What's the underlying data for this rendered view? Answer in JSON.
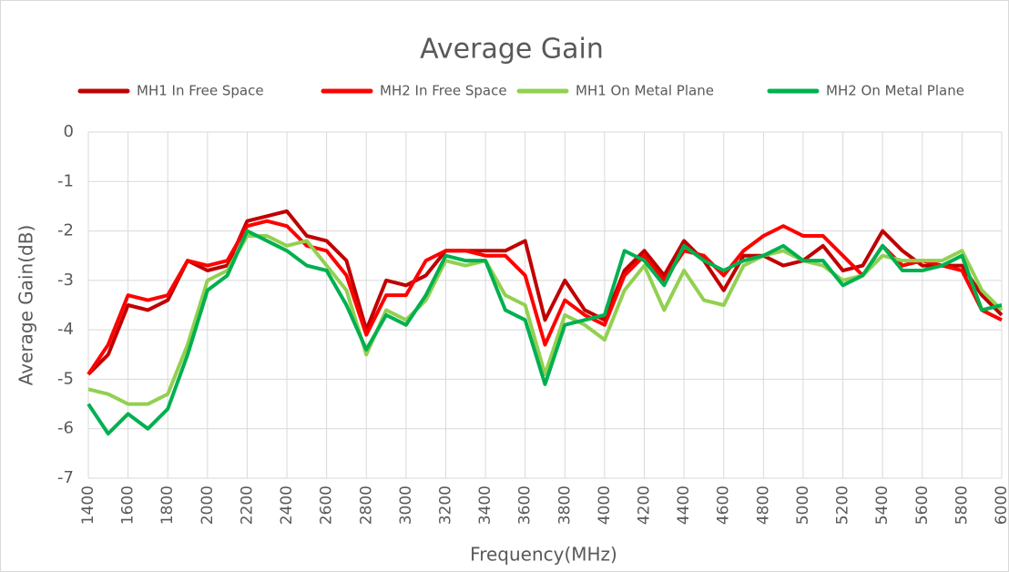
{
  "chart_data": {
    "type": "line",
    "title": "Average Gain",
    "xlabel": "Frequency(MHz)",
    "ylabel": "Average Gain(dB)",
    "x": [
      1400,
      1500,
      1600,
      1700,
      1800,
      1900,
      2000,
      2100,
      2200,
      2300,
      2400,
      2500,
      2600,
      2700,
      2800,
      2900,
      3000,
      3100,
      3200,
      3300,
      3400,
      3500,
      3600,
      3700,
      3800,
      3900,
      4000,
      4100,
      4200,
      4300,
      4400,
      4500,
      4600,
      4700,
      4800,
      4900,
      5000,
      5100,
      5200,
      5300,
      5400,
      5500,
      5600,
      5700,
      5800,
      5900,
      6000
    ],
    "series": [
      {
        "name": "MH1 In Free Space",
        "color": "#c00000",
        "values": [
          -4.9,
          -4.5,
          -3.5,
          -3.6,
          -3.4,
          -2.6,
          -2.8,
          -2.7,
          -1.8,
          -1.7,
          -1.6,
          -2.1,
          -2.2,
          -2.6,
          -4.0,
          -3.0,
          -3.1,
          -2.9,
          -2.4,
          -2.4,
          -2.4,
          -2.4,
          -2.2,
          -3.8,
          -3.0,
          -3.6,
          -3.8,
          -2.8,
          -2.4,
          -2.9,
          -2.2,
          -2.6,
          -3.2,
          -2.5,
          -2.5,
          -2.7,
          -2.6,
          -2.3,
          -2.8,
          -2.7,
          -2.0,
          -2.4,
          -2.7,
          -2.7,
          -2.7,
          -3.3,
          -3.7
        ]
      },
      {
        "name": "MH2 In Free Space",
        "color": "#ff0000",
        "values": [
          -4.9,
          -4.3,
          -3.3,
          -3.4,
          -3.3,
          -2.6,
          -2.7,
          -2.6,
          -1.9,
          -1.8,
          -1.9,
          -2.3,
          -2.4,
          -2.9,
          -4.1,
          -3.3,
          -3.3,
          -2.6,
          -2.4,
          -2.4,
          -2.5,
          -2.5,
          -2.9,
          -4.3,
          -3.4,
          -3.7,
          -3.9,
          -2.9,
          -2.5,
          -3.0,
          -2.4,
          -2.5,
          -2.9,
          -2.4,
          -2.1,
          -1.9,
          -2.1,
          -2.1,
          -2.5,
          -2.9,
          -2.3,
          -2.7,
          -2.6,
          -2.7,
          -2.8,
          -3.6,
          -3.8
        ]
      },
      {
        "name": "MH1 On Metal Plane",
        "color": "#92d050",
        "values": [
          -5.2,
          -5.3,
          -5.5,
          -5.5,
          -5.3,
          -4.3,
          -3.0,
          -2.8,
          -2.1,
          -2.1,
          -2.3,
          -2.2,
          -2.7,
          -3.2,
          -4.5,
          -3.6,
          -3.8,
          -3.4,
          -2.6,
          -2.7,
          -2.6,
          -3.3,
          -3.5,
          -4.9,
          -3.7,
          -3.9,
          -4.2,
          -3.2,
          -2.7,
          -3.6,
          -2.8,
          -3.4,
          -3.5,
          -2.7,
          -2.5,
          -2.4,
          -2.6,
          -2.7,
          -3.0,
          -2.9,
          -2.5,
          -2.6,
          -2.6,
          -2.6,
          -2.4,
          -3.2,
          -3.6
        ]
      },
      {
        "name": "MH2 On Metal Plane",
        "color": "#00b050",
        "values": [
          -5.5,
          -6.1,
          -5.7,
          -6.0,
          -5.6,
          -4.5,
          -3.2,
          -2.9,
          -2.0,
          -2.2,
          -2.4,
          -2.7,
          -2.8,
          -3.5,
          -4.4,
          -3.7,
          -3.9,
          -3.3,
          -2.5,
          -2.6,
          -2.6,
          -3.6,
          -3.8,
          -5.1,
          -3.9,
          -3.8,
          -3.7,
          -2.4,
          -2.6,
          -3.1,
          -2.3,
          -2.6,
          -2.8,
          -2.6,
          -2.5,
          -2.3,
          -2.6,
          -2.6,
          -3.1,
          -2.9,
          -2.3,
          -2.8,
          -2.8,
          -2.7,
          -2.5,
          -3.6,
          -3.5
        ]
      }
    ],
    "xlim": [
      1400,
      6000
    ],
    "xticks": [
      1400,
      1600,
      1800,
      2000,
      2200,
      2400,
      2600,
      2800,
      3000,
      3200,
      3400,
      3600,
      3800,
      4000,
      4200,
      4400,
      4600,
      4800,
      5000,
      5200,
      5400,
      5600,
      5800,
      6000
    ],
    "ylim": [
      -7,
      0
    ],
    "yticks": [
      0,
      -1,
      -2,
      -3,
      -4,
      -5,
      -6,
      -7
    ],
    "grid": true,
    "legend": "top"
  }
}
